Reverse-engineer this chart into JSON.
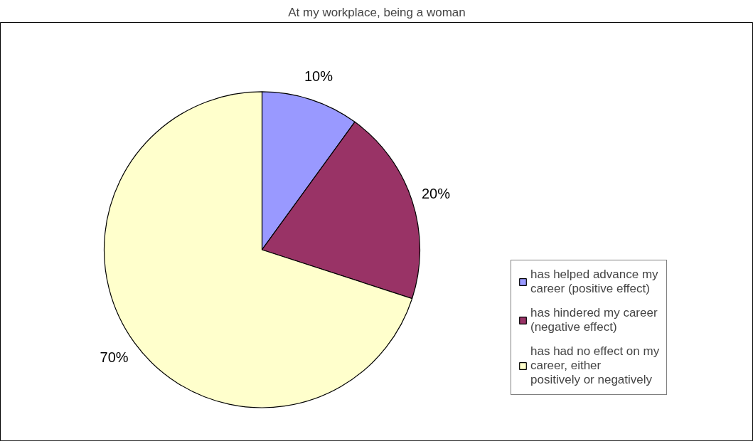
{
  "chart_data": {
    "type": "pie",
    "title": "At my workplace, being a woman",
    "categories": [
      "has helped advance my career (positive effect)",
      "has hindered my career (negative effect)",
      "has had no effect on my career, either positively or negatively"
    ],
    "values": [
      10,
      20,
      70
    ],
    "colors": [
      "#9999ff",
      "#993366",
      "#ffffcc"
    ],
    "value_labels": [
      "10%",
      "20%",
      "70%"
    ],
    "legend": "right"
  }
}
